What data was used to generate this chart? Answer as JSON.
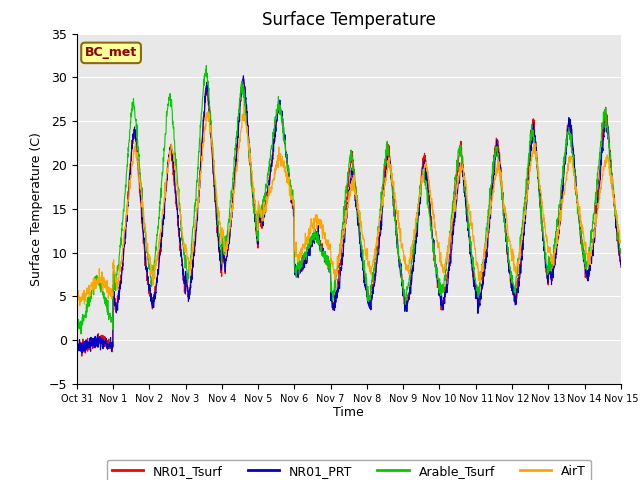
{
  "title": "Surface Temperature",
  "ylabel": "Surface Temperature (C)",
  "xlabel": "Time",
  "ylim": [
    -5,
    35
  ],
  "annotation_text": "BC_met",
  "annotation_bg": "#FFFF99",
  "annotation_border": "#8B6914",
  "annotation_text_color": "#8B0000",
  "colors": {
    "NR01_Tsurf": "#FF0000",
    "NR01_PRT": "#0000CC",
    "Arable_Tsurf": "#00CC00",
    "AirT": "#FFA500"
  },
  "bg_color": "#E8E8E8",
  "xtick_labels": [
    "Oct 31",
    "Nov 1",
    "Nov 2",
    "Nov 3",
    "Nov 4",
    "Nov 5",
    "Nov 6",
    "Nov 7",
    "Nov 8",
    "Nov 9",
    "Nov 10",
    "Nov 11",
    "Nov 12",
    "Nov 13",
    "Nov 14",
    "Nov 15"
  ],
  "legend_labels": [
    "NR01_Tsurf",
    "NR01_PRT",
    "Arable_Tsurf",
    "AirT"
  ]
}
